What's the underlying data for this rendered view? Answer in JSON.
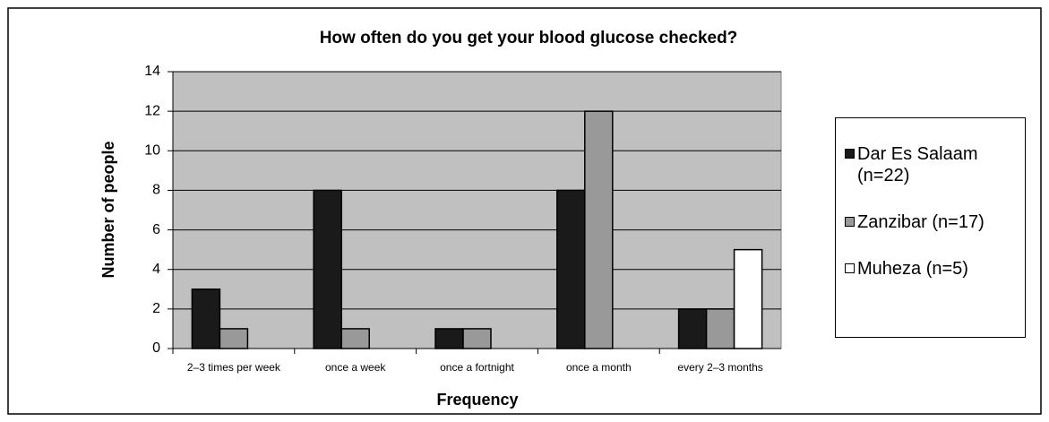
{
  "chart_data": {
    "type": "bar",
    "title": "How often do you get your blood glucose checked?",
    "x_label": "Frequency",
    "y_label": "Number of people",
    "categories": [
      "2–3 times per week",
      "once a week",
      "once a fortnight",
      "once a month",
      "every 2–3 months"
    ],
    "series": [
      {
        "name": "Dar Es Salaam (n=22)",
        "color": "#1a1a1a",
        "values": [
          3,
          8,
          1,
          8,
          2
        ]
      },
      {
        "name": "Zanzibar (n=17)",
        "color": "#999999",
        "values": [
          1,
          1,
          1,
          12,
          2
        ]
      },
      {
        "name": "Muheza (n=5)",
        "color": "#ffffff",
        "values": [
          0,
          0,
          0,
          0,
          5
        ]
      }
    ],
    "ylim": [
      0,
      14
    ],
    "yticks": [
      0,
      2,
      4,
      6,
      8,
      10,
      12,
      14
    ],
    "grid": true,
    "legend": "right"
  }
}
